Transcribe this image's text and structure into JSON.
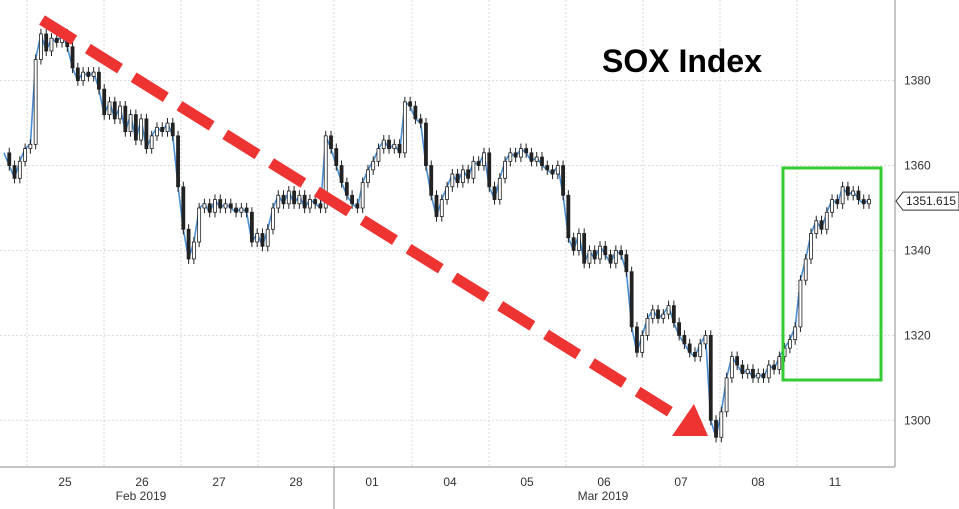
{
  "chart_data": {
    "type": "line",
    "title": "SOX Index",
    "x_tick_labels": [
      "25",
      "26",
      "27",
      "28",
      "01",
      "04",
      "05",
      "06",
      "07",
      "08",
      "11"
    ],
    "month_labels": [
      "Feb 2019",
      "Mar 2019"
    ],
    "y_tick_labels": [
      "1300",
      "1320",
      "1340",
      "1360",
      "1380"
    ],
    "ylim": [
      1289,
      1399
    ],
    "y_ticks": [
      1300,
      1320,
      1340,
      1360,
      1380
    ],
    "last_value_label": "1351.615",
    "last_value": 1351.615,
    "grid": true,
    "series": [
      {
        "values": [
          1363,
          1360,
          1357,
          1361,
          1364,
          1365,
          1385,
          1391,
          1387,
          1390,
          1389,
          1391,
          1388,
          1383,
          1380,
          1382,
          1381,
          1382,
          1378,
          1372,
          1375,
          1371,
          1374,
          1368,
          1372,
          1366,
          1371,
          1364,
          1367,
          1369,
          1368,
          1370,
          1367,
          1355,
          1345,
          1338,
          1342,
          1350,
          1351,
          1349,
          1352,
          1350,
          1351,
          1350,
          1349,
          1350,
          1349,
          1342,
          1344,
          1341,
          1345,
          1350,
          1353,
          1351,
          1354,
          1351,
          1353,
          1350,
          1352,
          1351,
          1350,
          1367,
          1364,
          1360,
          1356,
          1353,
          1351,
          1350,
          1356,
          1359,
          1361,
          1364,
          1366,
          1364,
          1365,
          1363,
          1375,
          1374,
          1371,
          1370,
          1360,
          1353,
          1348,
          1352,
          1355,
          1358,
          1356,
          1359,
          1357,
          1361,
          1360,
          1363,
          1355,
          1352,
          1357,
          1361,
          1363,
          1362,
          1364,
          1363,
          1361,
          1362,
          1360,
          1359,
          1358,
          1360,
          1353,
          1343,
          1340,
          1344,
          1337,
          1340,
          1338,
          1341,
          1339,
          1337,
          1340,
          1339,
          1335,
          1322,
          1316,
          1320,
          1324,
          1326,
          1324,
          1325,
          1327,
          1323,
          1320,
          1318,
          1316,
          1315,
          1318,
          1320,
          1300,
          1296,
          1302,
          1310,
          1315,
          1313,
          1311,
          1312,
          1310,
          1311,
          1310,
          1313,
          1312,
          1315,
          1317,
          1319,
          1322,
          1333,
          1338,
          1344,
          1347,
          1345,
          1349,
          1352,
          1351,
          1355,
          1353,
          1354,
          1352,
          1351,
          1352
        ]
      }
    ],
    "annotations": [
      {
        "kind": "dashed-arrow",
        "color": "#ee3333",
        "from_value": 1397,
        "to_value": 1296
      },
      {
        "kind": "highlight-box",
        "color": "#33cc33",
        "from_value": 1311,
        "to_value": 1359
      }
    ],
    "colors": {
      "line": "#4a8fd6",
      "candle": "#222222",
      "grid": "#d9d9d9",
      "arrow": "#ee3333",
      "box": "#33cc33"
    }
  }
}
